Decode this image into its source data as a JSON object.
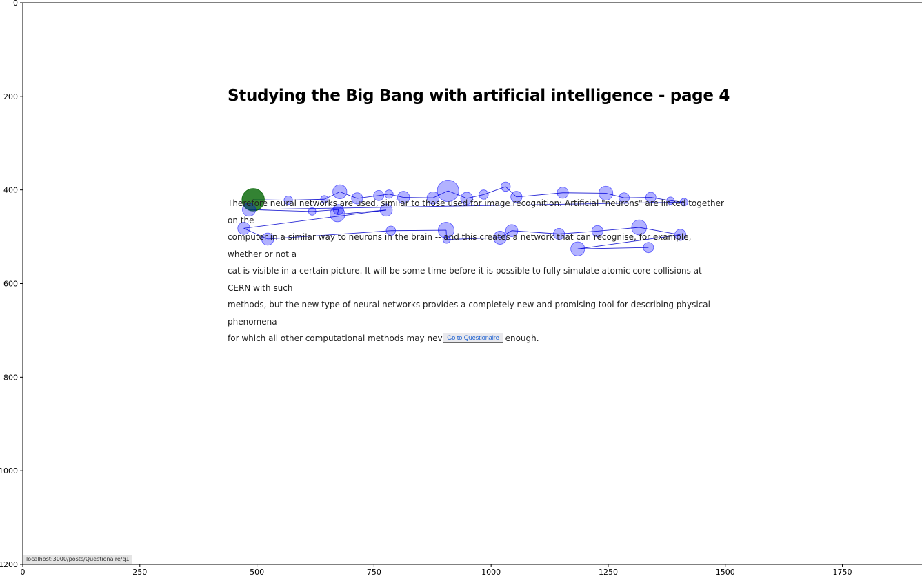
{
  "page": {
    "title": "Studying the Big Bang with artificial intelligence - page 4",
    "paragraph_lines": [
      "Therefore neural networks are used, similar to those used for image recognition: Artificial \"neurons\" are linked together on the",
      "computer in a similar way to neurons in the brain -- and this creates a network that can recognise, for example, whether or not a",
      "cat is visible in a certain picture. It will be some time before it is possible to fully simulate atomic core collisions at CERN with such",
      "methods, but the new type of neural networks provides a completely new and promising tool for describing physical phenomena",
      "for which all other computational methods may never be powerful enough."
    ],
    "button_label": "Go to Questionaire",
    "status_url": "localhost:3000/posts/Questionaire/q1"
  },
  "chart_data": {
    "type": "scatter",
    "description": "Eye-tracking fixation scanpath overlaid on a web page screenshot",
    "xlim": [
      0,
      1920
    ],
    "ylim": [
      1200,
      0
    ],
    "x_ticks": [
      0,
      250,
      500,
      750,
      1000,
      1250,
      1500,
      1750
    ],
    "y_ticks": [
      0,
      200,
      400,
      600,
      800,
      1000,
      1200
    ],
    "fixation_color": "#0000ff",
    "first_fixation_color": "#006400",
    "line_color": "#0000cc",
    "fixations": [
      {
        "x": 492,
        "y": 421,
        "r": 24
      },
      {
        "x": 567,
        "y": 422,
        "r": 9
      },
      {
        "x": 644,
        "y": 420,
        "r": 8
      },
      {
        "x": 677,
        "y": 404,
        "r": 15
      },
      {
        "x": 714,
        "y": 418,
        "r": 12
      },
      {
        "x": 760,
        "y": 412,
        "r": 11
      },
      {
        "x": 782,
        "y": 409,
        "r": 9
      },
      {
        "x": 813,
        "y": 416,
        "r": 13
      },
      {
        "x": 876,
        "y": 417,
        "r": 13
      },
      {
        "x": 908,
        "y": 402,
        "r": 23
      },
      {
        "x": 948,
        "y": 418,
        "r": 13
      },
      {
        "x": 984,
        "y": 410,
        "r": 10
      },
      {
        "x": 1031,
        "y": 393,
        "r": 10
      },
      {
        "x": 1054,
        "y": 415,
        "r": 12
      },
      {
        "x": 1153,
        "y": 406,
        "r": 12
      },
      {
        "x": 1245,
        "y": 407,
        "r": 15
      },
      {
        "x": 1284,
        "y": 417,
        "r": 11
      },
      {
        "x": 1341,
        "y": 416,
        "r": 11
      },
      {
        "x": 1383,
        "y": 423,
        "r": 8
      },
      {
        "x": 1412,
        "y": 426,
        "r": 8
      },
      {
        "x": 483,
        "y": 442,
        "r": 14
      },
      {
        "x": 618,
        "y": 446,
        "r": 8
      },
      {
        "x": 674,
        "y": 442,
        "r": 11
      },
      {
        "x": 672,
        "y": 452,
        "r": 16
      },
      {
        "x": 776,
        "y": 443,
        "r": 13
      },
      {
        "x": 472,
        "y": 482,
        "r": 13
      },
      {
        "x": 523,
        "y": 505,
        "r": 13
      },
      {
        "x": 786,
        "y": 487,
        "r": 10
      },
      {
        "x": 904,
        "y": 486,
        "r": 17
      },
      {
        "x": 905,
        "y": 506,
        "r": 8
      },
      {
        "x": 1019,
        "y": 502,
        "r": 14
      },
      {
        "x": 1044,
        "y": 487,
        "r": 13
      },
      {
        "x": 1145,
        "y": 494,
        "r": 12
      },
      {
        "x": 1227,
        "y": 488,
        "r": 12
      },
      {
        "x": 1316,
        "y": 480,
        "r": 16
      },
      {
        "x": 1404,
        "y": 496,
        "r": 12
      },
      {
        "x": 1185,
        "y": 526,
        "r": 15
      },
      {
        "x": 1336,
        "y": 523,
        "r": 11
      }
    ]
  }
}
